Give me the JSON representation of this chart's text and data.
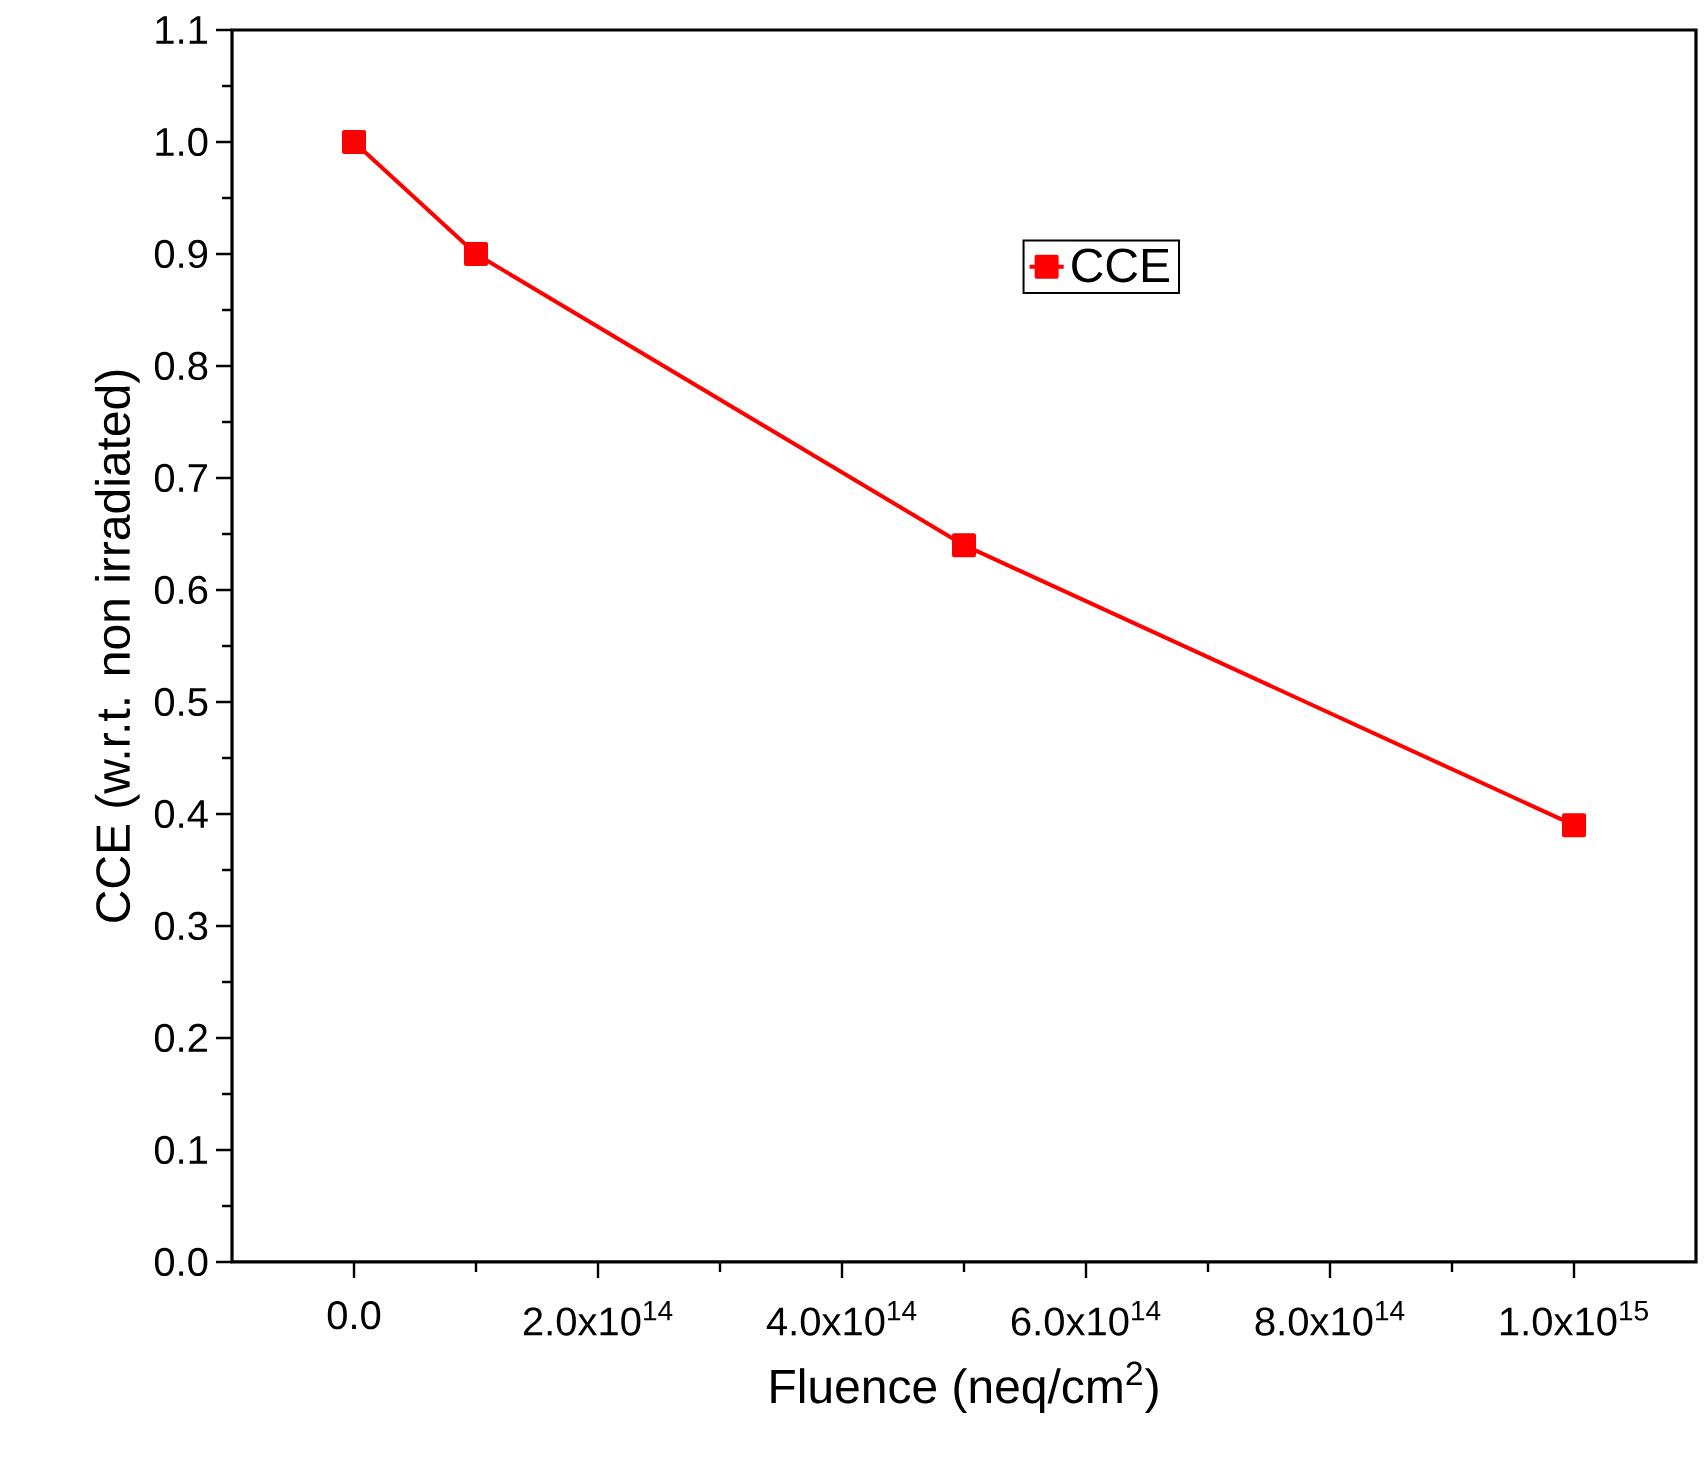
{
  "chart_data": {
    "type": "line",
    "xlabel": "Fluence (neq/cm$^{2}$)",
    "ylabel": "CCE (w.r.t. non irradiated)",
    "x": [
      0,
      100000000000000.0,
      500000000000000.0,
      1000000000000000.0
    ],
    "series": [
      {
        "name": "CCE",
        "color": "#ff0000",
        "values": [
          1.0,
          0.9,
          0.64,
          0.39
        ]
      }
    ],
    "xlim": [
      -100000000000000.0,
      1100000000000000.0
    ],
    "xticks": [
      {
        "value": 0,
        "label": "0.0"
      },
      {
        "value": 200000000000000.0,
        "label": "2.0x10$^{14}$"
      },
      {
        "value": 400000000000000.0,
        "label": "4.0x10$^{14}$"
      },
      {
        "value": 600000000000000.0,
        "label": "6.0x10$^{14}$"
      },
      {
        "value": 800000000000000.0,
        "label": "8.0x10$^{14}$"
      },
      {
        "value": 1000000000000000.0,
        "label": "1.0x10$^{15}$"
      }
    ],
    "ylim": [
      0,
      1.1
    ],
    "yticks": [
      {
        "value": 0,
        "label": "0.0"
      },
      {
        "value": 0.1,
        "label": "0.1"
      },
      {
        "value": 0.2,
        "label": "0.2"
      },
      {
        "value": 0.3,
        "label": "0.3"
      },
      {
        "value": 0.4,
        "label": "0.4"
      },
      {
        "value": 0.5,
        "label": "0.5"
      },
      {
        "value": 0.6,
        "label": "0.6"
      },
      {
        "value": 0.7,
        "label": "0.7"
      },
      {
        "value": 0.8,
        "label": "0.8"
      },
      {
        "value": 0.9,
        "label": "0.9"
      },
      {
        "value": 1.0,
        "label": "1.0"
      },
      {
        "value": 1.1,
        "label": "1.1"
      }
    ],
    "legend": "top right",
    "marker": "square",
    "line_style": "solid",
    "grid": false
  }
}
